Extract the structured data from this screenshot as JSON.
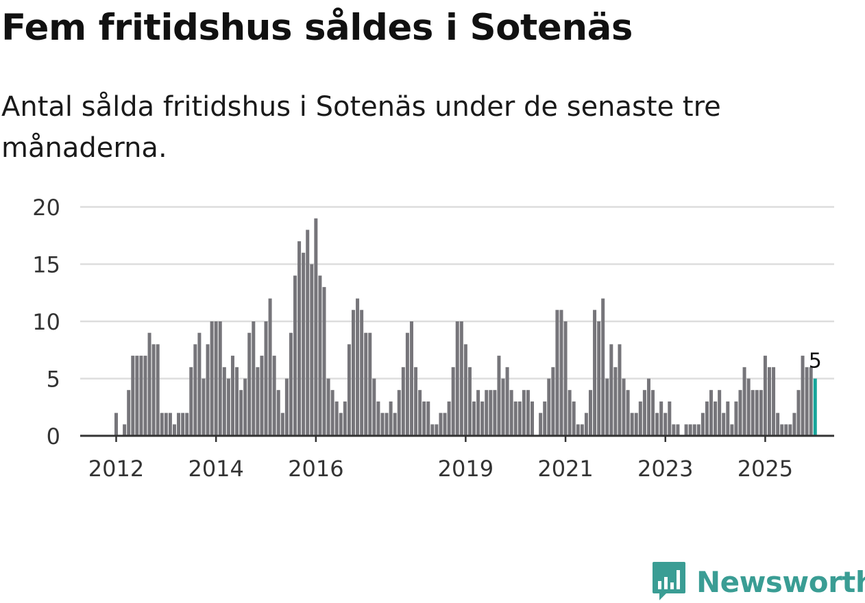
{
  "header": {
    "title": "Fem fritidshus såldes i Sotenäs",
    "subtitle": "Antal sålda fritidshus i Sotenäs under de senaste tre månaderna."
  },
  "brand": {
    "name": "Newsworthy",
    "color": "#3a9d94"
  },
  "colors": {
    "bar": "#76757a",
    "highlight": "#17a59a",
    "grid": "#dddddd",
    "axis": "#333333",
    "text": "#333333"
  },
  "chart_data": {
    "type": "bar",
    "title": "Fem fritidshus såldes i Sotenäs",
    "subtitle": "Antal sålda fritidshus i Sotenäs under de senaste tre månaderna.",
    "xlabel": "",
    "ylabel": "",
    "ylim": [
      0,
      20
    ],
    "yticks": [
      "0",
      "5",
      "10",
      "15",
      "20"
    ],
    "grid": true,
    "x_start": "2012-01",
    "xticks": [
      "2012",
      "2014",
      "2016",
      "2019",
      "2021",
      "2023",
      "2025"
    ],
    "values": [
      2,
      0,
      1,
      4,
      7,
      7,
      7,
      7,
      9,
      8,
      8,
      2,
      2,
      2,
      1,
      2,
      2,
      2,
      6,
      8,
      9,
      5,
      8,
      10,
      10,
      10,
      6,
      5,
      7,
      6,
      4,
      5,
      9,
      10,
      6,
      7,
      10,
      12,
      7,
      4,
      2,
      5,
      9,
      14,
      17,
      16,
      18,
      15,
      19,
      14,
      13,
      5,
      4,
      3,
      2,
      3,
      8,
      11,
      12,
      11,
      9,
      9,
      5,
      3,
      2,
      2,
      3,
      2,
      4,
      6,
      9,
      10,
      6,
      4,
      3,
      3,
      1,
      1,
      2,
      2,
      3,
      6,
      10,
      10,
      8,
      6,
      3,
      4,
      3,
      4,
      4,
      4,
      7,
      5,
      6,
      4,
      3,
      3,
      4,
      4,
      3,
      0,
      2,
      3,
      5,
      6,
      11,
      11,
      10,
      4,
      3,
      1,
      1,
      2,
      4,
      11,
      10,
      12,
      5,
      8,
      6,
      8,
      5,
      4,
      2,
      2,
      3,
      4,
      5,
      4,
      2,
      3,
      2,
      3,
      1,
      1,
      0,
      1,
      1,
      1,
      1,
      2,
      3,
      4,
      3,
      4,
      2,
      3,
      1,
      3,
      4,
      6,
      5,
      4,
      4,
      4,
      7,
      6,
      6,
      2,
      1,
      1,
      1,
      2,
      4,
      7,
      6,
      6,
      5
    ],
    "highlight_last": true,
    "annotation": {
      "label": "5"
    }
  }
}
